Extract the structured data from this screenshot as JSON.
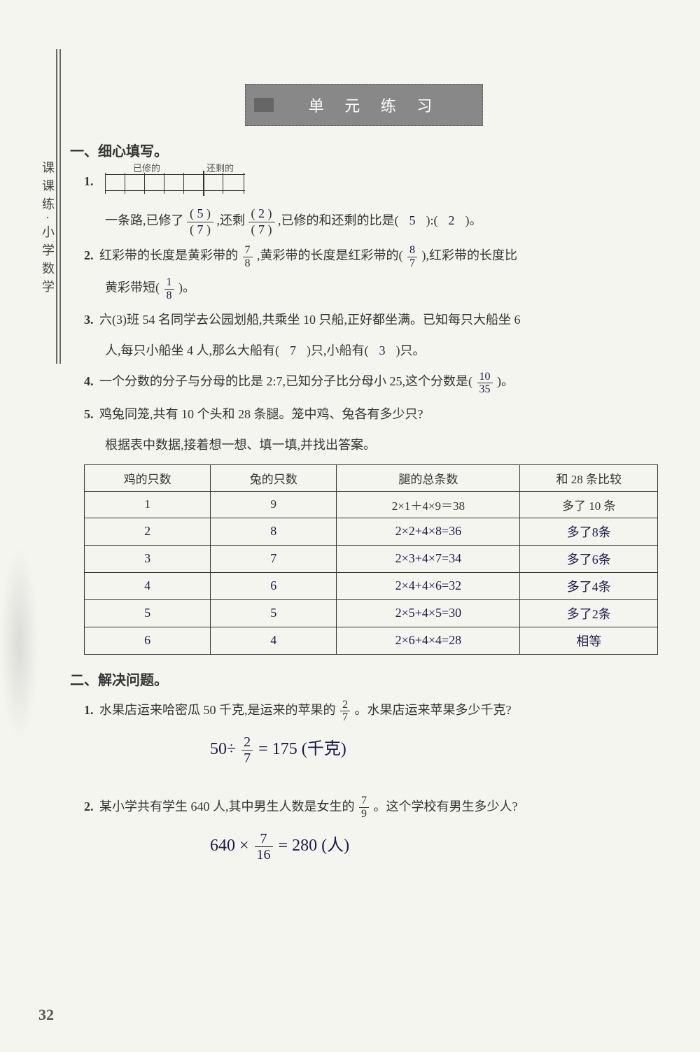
{
  "sideLabel": "课课练·小学数学",
  "banner": "单 元 练 习",
  "section1": {
    "title": "一、细心填写。",
    "p1": {
      "num": "1.",
      "diagLabel1": "已修的",
      "diagLabel2": "还剩的",
      "text1": "一条路,已修了",
      "ans1n": "5",
      "ans1d": "7",
      "text2": ",还剩",
      "ans2n": "2",
      "ans2d": "7",
      "text3": ",已修的和还剩的比是(",
      "ans3": "5",
      "text4": "):(",
      "ans4": "2",
      "text5": ")。"
    },
    "p2": {
      "num": "2.",
      "text1": "红彩带的长度是黄彩带的",
      "f1n": "7",
      "f1d": "8",
      "text2": ",黄彩带的长度是红彩带的(",
      "ans1n": "8",
      "ans1d": "7",
      "text3": "),红彩带的长度比",
      "text4": "黄彩带短(",
      "ans2n": "1",
      "ans2d": "8",
      "text5": ")。"
    },
    "p3": {
      "num": "3.",
      "text1": "六(3)班 54 名同学去公园划船,共乘坐 10 只船,正好都坐满。已知每只大船坐 6",
      "text2": "人,每只小船坐 4 人,那么大船有(",
      "ans1": "7",
      "text3": ")只,小船有(",
      "ans2": "3",
      "text4": ")只。"
    },
    "p4": {
      "num": "4.",
      "text1": "一个分数的分子与分母的比是 2:7,已知分子比分母小 25,这个分数是(",
      "ansn": "10",
      "ansd": "35",
      "text2": ")。"
    },
    "p5": {
      "num": "5.",
      "text1": "鸡兔同笼,共有 10 个头和 28 条腿。笼中鸡、兔各有多少只?",
      "text2": "根据表中数据,接着想一想、填一填,并找出答案。"
    },
    "table": {
      "headers": [
        "鸡的只数",
        "兔的只数",
        "腿的总条数",
        "和 28 条比较"
      ],
      "rows": [
        {
          "c1": "1",
          "c2": "9",
          "c3": "2×1＋4×9＝38",
          "c4": "多了 10 条",
          "hw": false
        },
        {
          "c1": "2",
          "c2": "8",
          "c3": "2×2+4×8=36",
          "c4": "多了8条",
          "hw": true
        },
        {
          "c1": "3",
          "c2": "7",
          "c3": "2×3+4×7=34",
          "c4": "多了6条",
          "hw": true
        },
        {
          "c1": "4",
          "c2": "6",
          "c3": "2×4+4×6=32",
          "c4": "多了4条",
          "hw": true
        },
        {
          "c1": "5",
          "c2": "5",
          "c3": "2×5+4×5=30",
          "c4": "多了2条",
          "hw": true
        },
        {
          "c1": "6",
          "c2": "4",
          "c3": "2×6+4×4=28",
          "c4": "相等",
          "hw": true
        }
      ]
    }
  },
  "section2": {
    "title": "二、解决问题。",
    "p1": {
      "num": "1.",
      "text1": "水果店运来哈密瓜 50 千克,是运来的苹果的",
      "fn": "2",
      "fd": "7",
      "text2": "。水果店运来苹果多少千克?",
      "answer": "50÷ 2/7 = 175 (千克)"
    },
    "p2": {
      "num": "2.",
      "text1": "某小学共有学生 640 人,其中男生人数是女生的",
      "fn": "7",
      "fd": "9",
      "text2": "。这个学校有男生多少人?",
      "answer": "640 × 7/16 = 280 (人)"
    }
  },
  "pageNum": "32"
}
